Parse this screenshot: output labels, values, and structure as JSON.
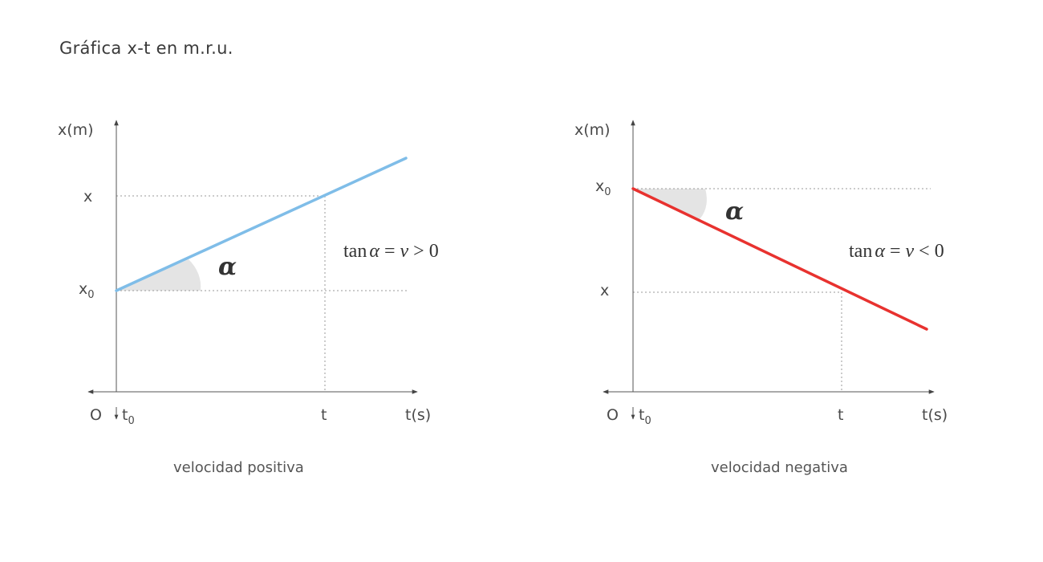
{
  "title": "Gráfica x-t en m.r.u.",
  "charts": [
    {
      "id": "positive",
      "y_axis_label": "x(m)",
      "x_axis_label": "t(s)",
      "origin_label": "O",
      "y_x_label": "x",
      "y_x0_label": "x",
      "y_x0_sub": "0",
      "x_t_label": "t",
      "x_t0_label": "t",
      "x_t0_sub": "0",
      "angle_label": "α",
      "formula": {
        "tan": "tan",
        "alpha": "α",
        "eq": " = ",
        "v": "v",
        "rel": " > ",
        "zero": "0"
      },
      "caption": "velocidad positiva",
      "line_color": "#7fbde8"
    },
    {
      "id": "negative",
      "y_axis_label": "x(m)",
      "x_axis_label": "t(s)",
      "origin_label": "O",
      "y_x_label": "x",
      "y_x0_label": "x",
      "y_x0_sub": "0",
      "x_t_label": "t",
      "x_t0_label": "t",
      "x_t0_sub": "0",
      "angle_label": "α",
      "formula": {
        "tan": "tan",
        "alpha": "α",
        "eq": " = ",
        "v": "v",
        "rel": " < ",
        "zero": "0"
      },
      "caption": "velocidad negativa",
      "line_color": "#e8322f"
    }
  ]
}
